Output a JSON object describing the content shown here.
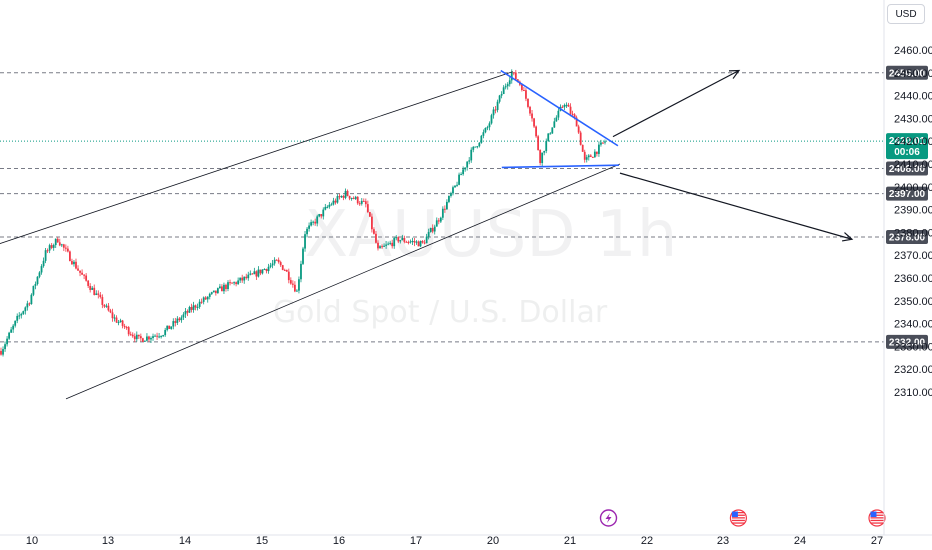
{
  "chart_data": {
    "type": "candlestick",
    "symbol": "XAUUSD",
    "interval": "1h",
    "description": "Gold Spot / U.S. Dollar",
    "currency": "USD",
    "ylim": [
      2305,
      2472
    ],
    "y_ticks": [
      2310,
      2320,
      2330,
      2340,
      2350,
      2360,
      2370,
      2380,
      2390,
      2400,
      2410,
      2420,
      2430,
      2440,
      2450,
      2460
    ],
    "x_ticks": [
      "10",
      "13",
      "14",
      "15",
      "16",
      "17",
      "20",
      "21",
      "22",
      "23",
      "24",
      "27"
    ],
    "current_price": {
      "value": 2420.01,
      "label": "2420.01",
      "countdown": "00:06",
      "color": "#089981"
    },
    "candle_colors": {
      "up": "#089981",
      "down": "#f23645"
    },
    "horizontal_levels": [
      {
        "value": 2450.0,
        "label": "2450.00"
      },
      {
        "value": 2408.0,
        "label": "2408.00"
      },
      {
        "value": 2397.0,
        "label": "2397.00"
      },
      {
        "value": 2378.0,
        "label": "2378.00"
      },
      {
        "value": 2332.0,
        "label": "2332.00"
      }
    ],
    "anchors": [
      {
        "i": 0,
        "p": 2328
      },
      {
        "i": 8,
        "p": 2342
      },
      {
        "i": 14,
        "p": 2350
      },
      {
        "i": 22,
        "p": 2371
      },
      {
        "i": 28,
        "p": 2377
      },
      {
        "i": 40,
        "p": 2361
      },
      {
        "i": 55,
        "p": 2343
      },
      {
        "i": 68,
        "p": 2333
      },
      {
        "i": 80,
        "p": 2336
      },
      {
        "i": 96,
        "p": 2348
      },
      {
        "i": 110,
        "p": 2356
      },
      {
        "i": 124,
        "p": 2361
      },
      {
        "i": 136,
        "p": 2367
      },
      {
        "i": 140,
        "p": 2364
      },
      {
        "i": 146,
        "p": 2354
      },
      {
        "i": 150,
        "p": 2380
      },
      {
        "i": 162,
        "p": 2392
      },
      {
        "i": 170,
        "p": 2397
      },
      {
        "i": 180,
        "p": 2392
      },
      {
        "i": 186,
        "p": 2372
      },
      {
        "i": 196,
        "p": 2377
      },
      {
        "i": 208,
        "p": 2375
      },
      {
        "i": 216,
        "p": 2386
      },
      {
        "i": 224,
        "p": 2400
      },
      {
        "i": 232,
        "p": 2415
      },
      {
        "i": 240,
        "p": 2426
      },
      {
        "i": 248,
        "p": 2443
      },
      {
        "i": 252,
        "p": 2450
      },
      {
        "i": 257,
        "p": 2444
      },
      {
        "i": 262,
        "p": 2431
      },
      {
        "i": 266,
        "p": 2412
      },
      {
        "i": 272,
        "p": 2427
      },
      {
        "i": 278,
        "p": 2437
      },
      {
        "i": 284,
        "p": 2428
      },
      {
        "i": 288,
        "p": 2411
      },
      {
        "i": 294,
        "p": 2416
      },
      {
        "i": 298,
        "p": 2420
      }
    ],
    "trendlines": [
      {
        "name": "channel-upper",
        "x1": -0.03,
        "y1": 2371,
        "x2": 0.5502,
        "y2": 2450.5,
        "color": "#131722"
      },
      {
        "name": "channel-lower",
        "x1": 0.0708,
        "y1": 2307,
        "x2": 0.6652,
        "y2": 2410,
        "color": "#131722"
      },
      {
        "name": "triangle-upper",
        "x1": 0.5373,
        "y1": 2451,
        "x2": 0.663,
        "y2": 2418,
        "color": "#2962ff"
      },
      {
        "name": "triangle-lower",
        "x1": 0.5384,
        "y1": 2408.5,
        "x2": 0.6641,
        "y2": 2409.5,
        "color": "#2962ff"
      }
    ],
    "arrows": [
      {
        "name": "bullish-arrow",
        "x1": 0.6577,
        "y1": 2422,
        "x2": 0.7929,
        "y2": 2451
      },
      {
        "name": "bearish-arrow",
        "x1": 0.6652,
        "y1": 2406,
        "x2": 0.9141,
        "y2": 2377
      }
    ],
    "event_markers": [
      {
        "name": "lightning-event-icon",
        "date_index": 7.5,
        "kind": "lightning"
      },
      {
        "name": "us-flag-event-icon",
        "date_index": 9.2,
        "kind": "us"
      },
      {
        "name": "us-flag-event-icon-2",
        "date_index": 12.0,
        "kind": "us"
      }
    ],
    "grid": "horizontal levels only",
    "legend": "none"
  }
}
